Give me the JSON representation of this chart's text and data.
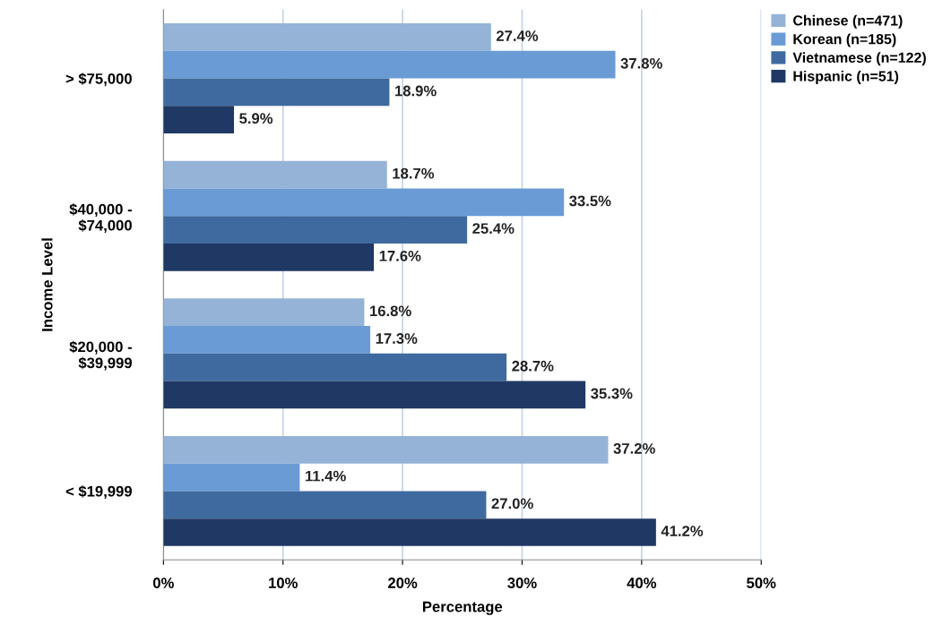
{
  "chart_data": {
    "type": "bar",
    "orientation": "horizontal",
    "categories": [
      "> $75,000",
      "$40,000 -\n$74,000",
      "$20,000 -\n$39,999",
      "< $19,999"
    ],
    "series": [
      {
        "name": "Chinese (n=471)",
        "color": "#95b3d7",
        "values": [
          27.4,
          18.7,
          16.8,
          37.2
        ],
        "value_labels": [
          "27.4%",
          "18.7%",
          "16.8%",
          "37.2%"
        ]
      },
      {
        "name": "Korean (n=185)",
        "color": "#6a9bd5",
        "values": [
          37.8,
          33.5,
          17.3,
          11.4
        ],
        "value_labels": [
          "37.8%",
          "33.5%",
          "17.3%",
          "11.4%"
        ]
      },
      {
        "name": "Vietnamese (n=122)",
        "color": "#3e6a9f",
        "values": [
          18.9,
          25.4,
          28.7,
          27.0
        ],
        "value_labels": [
          "18.9%",
          "25.4%",
          "28.7%",
          "27.0%"
        ]
      },
      {
        "name": "Hispanic (n=51)",
        "color": "#1f3864",
        "values": [
          5.9,
          17.6,
          35.3,
          41.2
        ],
        "value_labels": [
          "5.9%",
          "17.6%",
          "35.3%",
          "41.2%"
        ]
      }
    ],
    "xlabel": "Percentage",
    "ylabel": "Income Level",
    "xlim": [
      0,
      50
    ],
    "xticks": [
      {
        "value": 0,
        "label": "0%"
      },
      {
        "value": 10,
        "label": "10%"
      },
      {
        "value": 20,
        "label": "20%"
      },
      {
        "value": 30,
        "label": "30%"
      },
      {
        "value": 40,
        "label": "40%"
      },
      {
        "value": 50,
        "label": "50%"
      }
    ],
    "grid": "x",
    "legend": "top right"
  }
}
